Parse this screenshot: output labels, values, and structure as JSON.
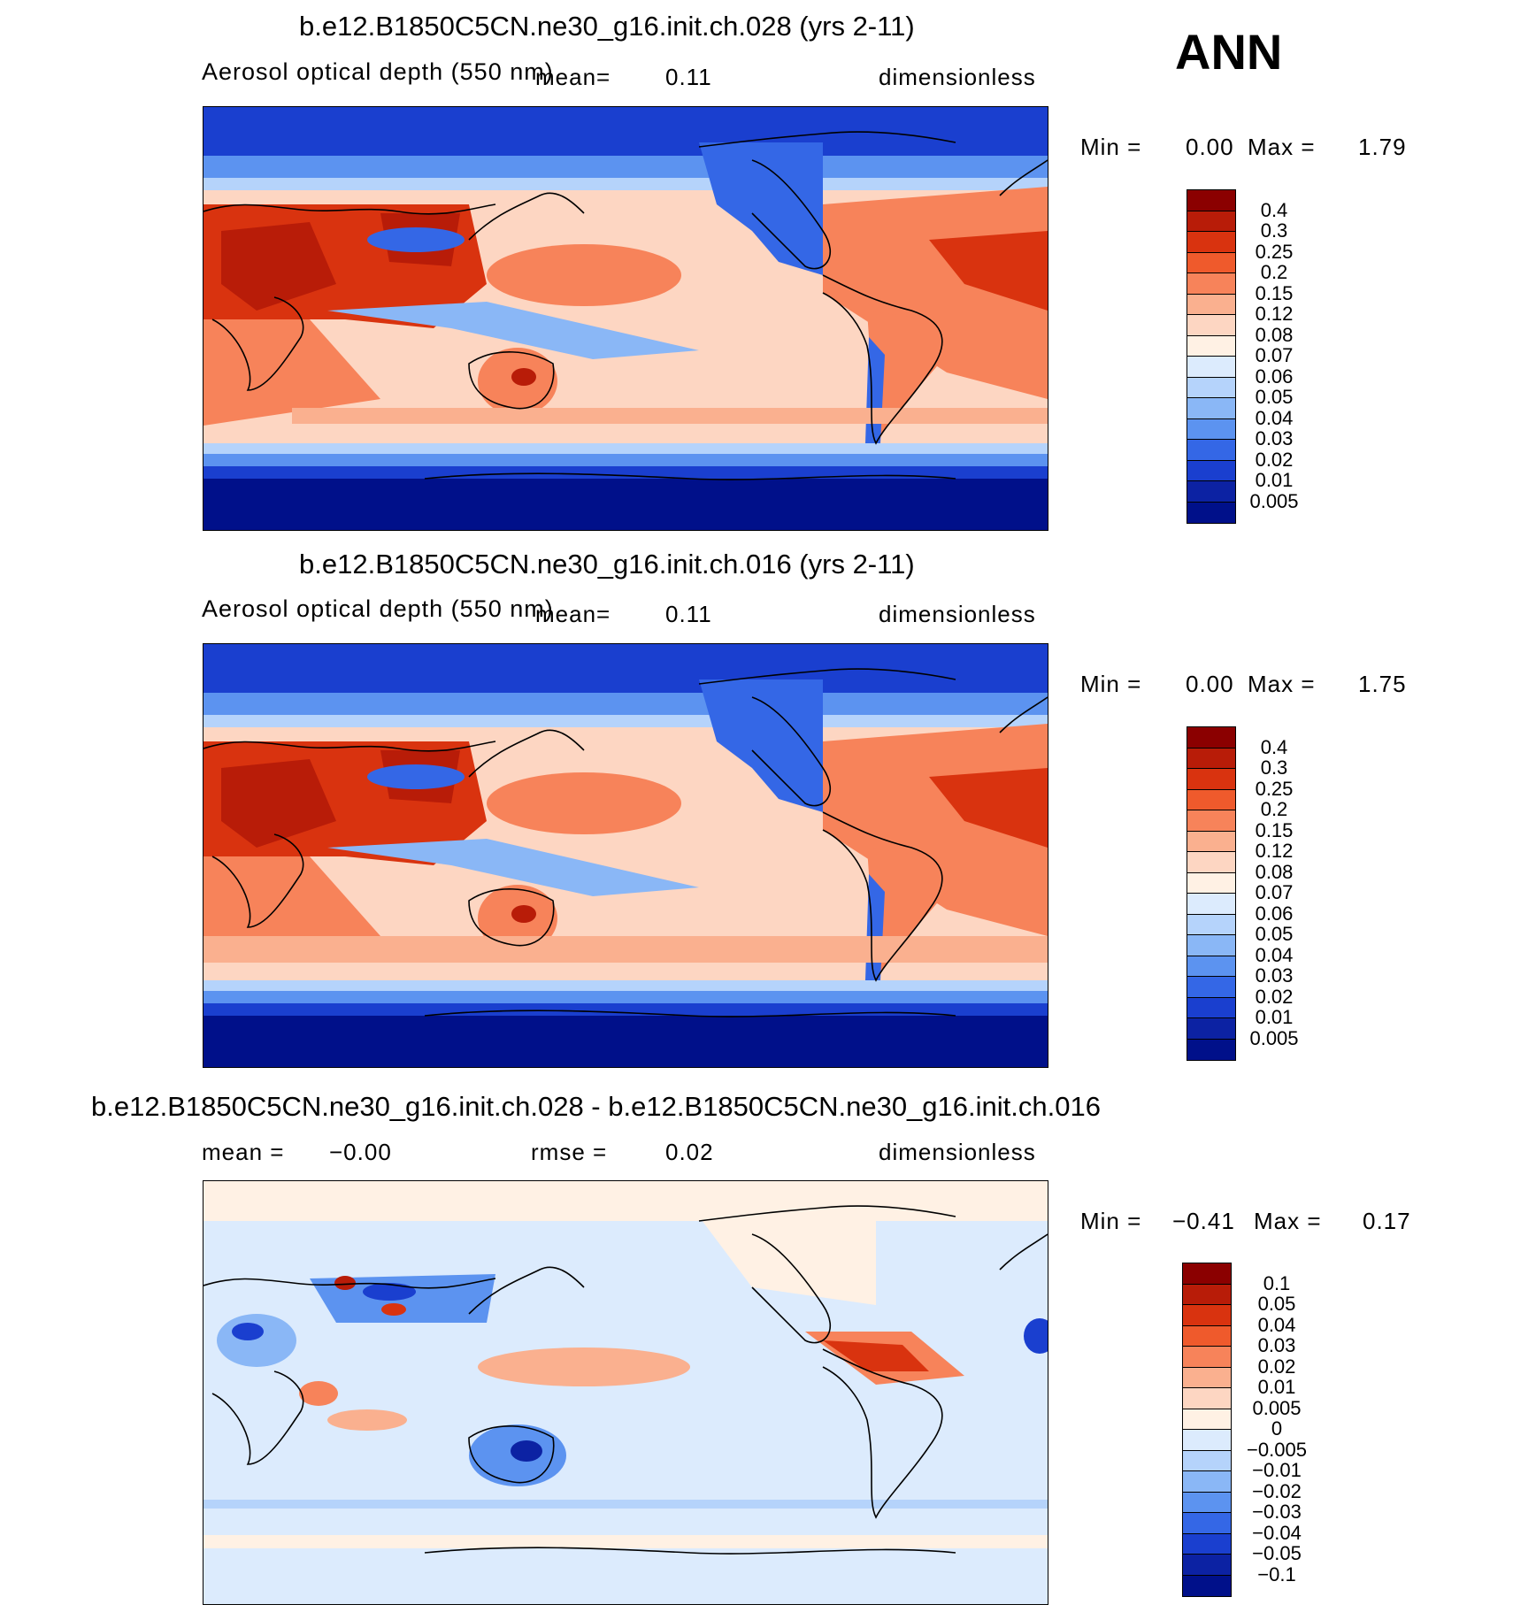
{
  "season": "ANN",
  "panels": [
    {
      "title": "b.e12.B1850C5CN.ne30_g16.init.ch.028 (yrs 2-11)",
      "left_label": "Aerosol optical depth (550 nm)",
      "mid_label": "mean=",
      "mid_value": "0.11",
      "right_label": "dimensionless",
      "min_label": "Min =",
      "min_value": "0.00",
      "max_label": "Max =",
      "max_value": "1.79",
      "colorbar_labels": [
        "0.4",
        "0.3",
        "0.25",
        "0.2",
        "0.15",
        "0.12",
        "0.08",
        "0.07",
        "0.06",
        "0.05",
        "0.04",
        "0.03",
        "0.02",
        "0.01",
        "0.005"
      ]
    },
    {
      "title": "b.e12.B1850C5CN.ne30_g16.init.ch.016 (yrs 2-11)",
      "left_label": "Aerosol optical depth (550 nm)",
      "mid_label": "mean=",
      "mid_value": "0.11",
      "right_label": "dimensionless",
      "min_label": "Min =",
      "min_value": "0.00",
      "max_label": "Max =",
      "max_value": "1.75",
      "colorbar_labels": [
        "0.4",
        "0.3",
        "0.25",
        "0.2",
        "0.15",
        "0.12",
        "0.08",
        "0.07",
        "0.06",
        "0.05",
        "0.04",
        "0.03",
        "0.02",
        "0.01",
        "0.005"
      ]
    },
    {
      "title": "b.e12.B1850C5CN.ne30_g16.init.ch.028 - b.e12.B1850C5CN.ne30_g16.init.ch.016",
      "left_label": "mean =",
      "left_value": "−0.00",
      "mid_label": "rmse =",
      "mid_value": "0.02",
      "right_label": "dimensionless",
      "min_label": "Min =",
      "min_value": "−0.41",
      "max_label": "Max =",
      "max_value": "0.17",
      "colorbar_labels": [
        "0.1",
        "0.05",
        "0.04",
        "0.03",
        "0.02",
        "0.01",
        "0.005",
        "0",
        "−0.005",
        "−0.01",
        "−0.02",
        "−0.03",
        "−0.04",
        "−0.05",
        "−0.1"
      ]
    }
  ],
  "colors": {
    "abs_scale": [
      "#8b0000",
      "#b81c08",
      "#d9330f",
      "#ef5a2c",
      "#f7835a",
      "#fab08f",
      "#fdd6c2",
      "#fff1e4",
      "#dcebfd",
      "#b5d3fb",
      "#8ab7f6",
      "#5c93f0",
      "#3467e6",
      "#1a3fcf",
      "#0c22a3",
      "#00108a"
    ],
    "diff_scale": [
      "#8b0000",
      "#b81c08",
      "#d9330f",
      "#ef5a2c",
      "#f7835a",
      "#fab08f",
      "#fdd6c2",
      "#fff1e4",
      "#dcebfd",
      "#b5d3fb",
      "#8ab7f6",
      "#5c93f0",
      "#3467e6",
      "#1a3fcf",
      "#0c22a3",
      "#00108a"
    ]
  }
}
